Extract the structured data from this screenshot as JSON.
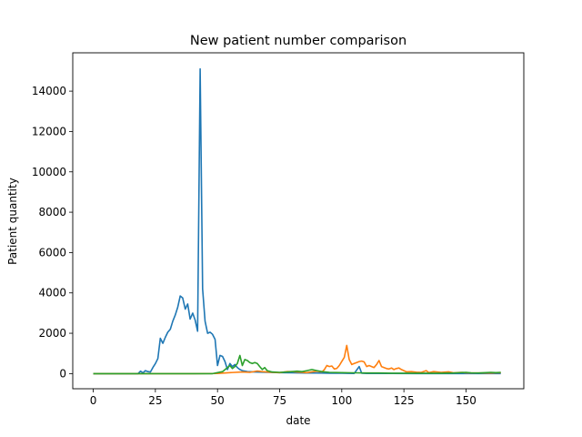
{
  "chart_data": {
    "type": "line",
    "title": "New patient number comparison",
    "xlabel": "date",
    "ylabel": "Patient quantity",
    "xlim": [
      -8.25,
      173.25
    ],
    "ylim": [
      -750,
      15900
    ],
    "xticks": [
      0,
      25,
      50,
      75,
      100,
      125,
      150
    ],
    "yticks": [
      0,
      2000,
      4000,
      6000,
      8000,
      10000,
      12000,
      14000
    ],
    "grid": false,
    "legend": "none",
    "series": [
      {
        "color": "#1f77b4",
        "points": [
          [
            0,
            0
          ],
          [
            10,
            0
          ],
          [
            18,
            0
          ],
          [
            19,
            120
          ],
          [
            20,
            40
          ],
          [
            21,
            150
          ],
          [
            22,
            100
          ],
          [
            23,
            80
          ],
          [
            24,
            300
          ],
          [
            25,
            500
          ],
          [
            26,
            750
          ],
          [
            27,
            1750
          ],
          [
            28,
            1500
          ],
          [
            29,
            1800
          ],
          [
            30,
            2050
          ],
          [
            31,
            2200
          ],
          [
            32,
            2600
          ],
          [
            33,
            2900
          ],
          [
            34,
            3300
          ],
          [
            35,
            3850
          ],
          [
            36,
            3750
          ],
          [
            37,
            3200
          ],
          [
            38,
            3450
          ],
          [
            39,
            2700
          ],
          [
            40,
            3000
          ],
          [
            41,
            2650
          ],
          [
            42,
            2100
          ],
          [
            43,
            15100
          ],
          [
            44,
            4200
          ],
          [
            45,
            2600
          ],
          [
            46,
            2000
          ],
          [
            47,
            2050
          ],
          [
            48,
            1950
          ],
          [
            49,
            1700
          ],
          [
            50,
            400
          ],
          [
            51,
            900
          ],
          [
            52,
            850
          ],
          [
            53,
            600
          ],
          [
            54,
            200
          ],
          [
            55,
            500
          ],
          [
            56,
            350
          ],
          [
            57,
            450
          ],
          [
            58,
            300
          ],
          [
            59,
            200
          ],
          [
            60,
            150
          ],
          [
            62,
            100
          ],
          [
            65,
            80
          ],
          [
            70,
            60
          ],
          [
            75,
            50
          ],
          [
            80,
            40
          ],
          [
            85,
            30
          ],
          [
            90,
            30
          ],
          [
            95,
            20
          ],
          [
            100,
            20
          ],
          [
            105,
            10
          ],
          [
            107,
            350
          ],
          [
            108,
            20
          ],
          [
            110,
            10
          ],
          [
            120,
            10
          ],
          [
            130,
            5
          ],
          [
            140,
            5
          ],
          [
            150,
            5
          ],
          [
            160,
            5
          ],
          [
            164,
            5
          ]
        ]
      },
      {
        "color": "#ff7f0e",
        "points": [
          [
            0,
            0
          ],
          [
            20,
            0
          ],
          [
            40,
            0
          ],
          [
            50,
            10
          ],
          [
            55,
            50
          ],
          [
            60,
            80
          ],
          [
            63,
            60
          ],
          [
            66,
            130
          ],
          [
            68,
            100
          ],
          [
            70,
            80
          ],
          [
            72,
            60
          ],
          [
            75,
            50
          ],
          [
            78,
            100
          ],
          [
            80,
            100
          ],
          [
            82,
            80
          ],
          [
            84,
            60
          ],
          [
            86,
            50
          ],
          [
            88,
            90
          ],
          [
            90,
            120
          ],
          [
            92,
            80
          ],
          [
            93,
            200
          ],
          [
            94,
            400
          ],
          [
            95,
            350
          ],
          [
            96,
            380
          ],
          [
            97,
            230
          ],
          [
            98,
            260
          ],
          [
            99,
            400
          ],
          [
            100,
            600
          ],
          [
            101,
            800
          ],
          [
            102,
            1400
          ],
          [
            103,
            700
          ],
          [
            104,
            450
          ],
          [
            105,
            500
          ],
          [
            106,
            550
          ],
          [
            107,
            600
          ],
          [
            108,
            620
          ],
          [
            109,
            580
          ],
          [
            110,
            350
          ],
          [
            111,
            400
          ],
          [
            112,
            350
          ],
          [
            113,
            300
          ],
          [
            114,
            450
          ],
          [
            115,
            650
          ],
          [
            116,
            350
          ],
          [
            117,
            300
          ],
          [
            118,
            250
          ],
          [
            119,
            230
          ],
          [
            120,
            280
          ],
          [
            121,
            200
          ],
          [
            122,
            250
          ],
          [
            123,
            280
          ],
          [
            124,
            200
          ],
          [
            125,
            150
          ],
          [
            126,
            90
          ],
          [
            128,
            100
          ],
          [
            130,
            70
          ],
          [
            132,
            60
          ],
          [
            134,
            150
          ],
          [
            135,
            50
          ],
          [
            137,
            100
          ],
          [
            140,
            60
          ],
          [
            143,
            90
          ],
          [
            145,
            40
          ],
          [
            148,
            60
          ],
          [
            150,
            40
          ],
          [
            155,
            30
          ],
          [
            160,
            30
          ],
          [
            164,
            50
          ]
        ]
      },
      {
        "color": "#2ca02c",
        "points": [
          [
            0,
            0
          ],
          [
            20,
            0
          ],
          [
            40,
            0
          ],
          [
            48,
            0
          ],
          [
            50,
            50
          ],
          [
            52,
            100
          ],
          [
            54,
            300
          ],
          [
            55,
            400
          ],
          [
            56,
            250
          ],
          [
            57,
            350
          ],
          [
            58,
            500
          ],
          [
            59,
            900
          ],
          [
            60,
            400
          ],
          [
            61,
            700
          ],
          [
            62,
            650
          ],
          [
            63,
            550
          ],
          [
            64,
            500
          ],
          [
            65,
            550
          ],
          [
            66,
            500
          ],
          [
            67,
            350
          ],
          [
            68,
            200
          ],
          [
            69,
            300
          ],
          [
            70,
            150
          ],
          [
            72,
            80
          ],
          [
            75,
            60
          ],
          [
            78,
            80
          ],
          [
            80,
            100
          ],
          [
            82,
            120
          ],
          [
            84,
            100
          ],
          [
            86,
            150
          ],
          [
            88,
            200
          ],
          [
            90,
            150
          ],
          [
            92,
            100
          ],
          [
            95,
            60
          ],
          [
            100,
            50
          ],
          [
            105,
            40
          ],
          [
            110,
            30
          ],
          [
            115,
            30
          ],
          [
            120,
            20
          ],
          [
            125,
            20
          ],
          [
            130,
            20
          ],
          [
            135,
            20
          ],
          [
            140,
            20
          ],
          [
            145,
            30
          ],
          [
            150,
            60
          ],
          [
            152,
            40
          ],
          [
            155,
            30
          ],
          [
            158,
            50
          ],
          [
            160,
            60
          ],
          [
            162,
            50
          ],
          [
            164,
            60
          ]
        ]
      }
    ]
  }
}
